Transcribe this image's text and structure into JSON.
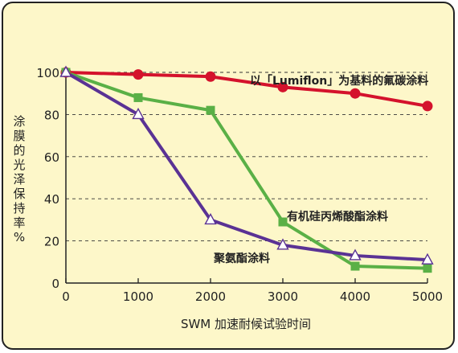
{
  "chart_data": {
    "type": "line",
    "xlabel": "SWM 加速耐候试验时间",
    "ylabel": "涂膜的光泽保持率%",
    "x_ticks": [
      "0",
      "1000",
      "2000",
      "3000",
      "4000",
      "5000"
    ],
    "y_ticks": [
      "0",
      "20",
      "40",
      "60",
      "80",
      "100"
    ],
    "xlim": [
      0,
      5000
    ],
    "ylim": [
      0,
      100
    ],
    "grid": "horizontal dashed",
    "series": [
      {
        "name": "以「Lumiflon」为基料的氟碳涂料",
        "color": "#d4122c",
        "marker": "circle",
        "x": [
          0,
          1000,
          2000,
          3000,
          4000,
          5000
        ],
        "y": [
          100,
          99,
          98,
          93,
          90,
          84
        ]
      },
      {
        "name": "有机硅丙烯酸酯涂料",
        "color": "#5ab046",
        "marker": "square",
        "x": [
          0,
          1000,
          2000,
          3000,
          4000,
          5000
        ],
        "y": [
          100,
          88,
          82,
          29,
          8,
          7
        ]
      },
      {
        "name": "聚氨酯涂料",
        "color": "#5a3294",
        "marker": "triangle",
        "x": [
          0,
          1000,
          2000,
          3000,
          4000,
          5000
        ],
        "y": [
          100,
          80,
          30,
          18,
          13,
          11
        ]
      }
    ]
  }
}
